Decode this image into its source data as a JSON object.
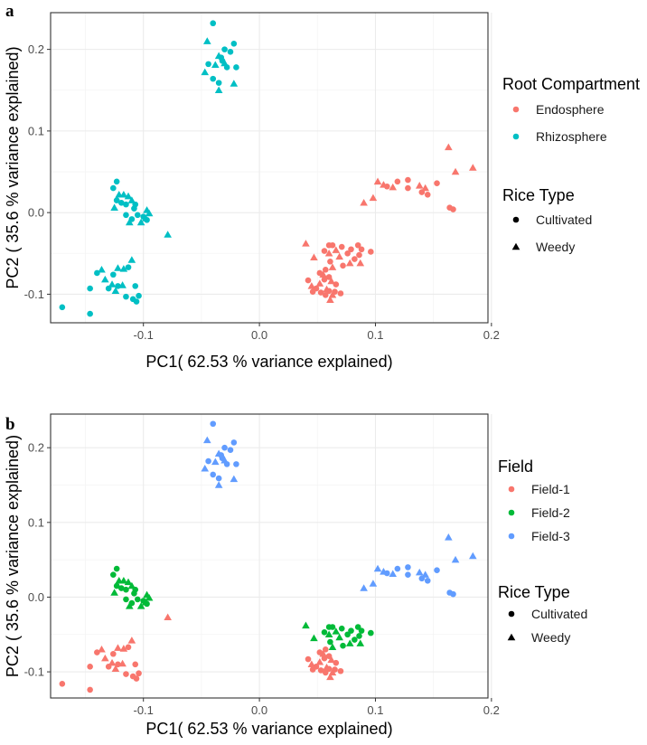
{
  "chart_data": [
    {
      "type": "scatter",
      "panel_label": "a",
      "xlabel": "PC1( 62.53 % variance explained)",
      "ylabel": "PC2 ( 35.6 % variance explained)",
      "xlim": [
        -0.18,
        0.197
      ],
      "ylim": [
        -0.135,
        0.245
      ],
      "x_ticks": [
        -0.1,
        0.0,
        0.1,
        0.2
      ],
      "x_tick_labels": [
        "-0.1",
        "0.0",
        "0.1",
        "0.2"
      ],
      "y_ticks": [
        -0.1,
        0.0,
        0.1,
        0.2
      ],
      "y_tick_labels": [
        "-0.1",
        "0.0",
        "0.1",
        "0.2"
      ],
      "grid": true,
      "color_by": "compartment",
      "legends": [
        {
          "title": "Root Compartment",
          "kind": "color",
          "items": [
            {
              "label": "Endosphere",
              "color": "#F8766D"
            },
            {
              "label": "Rhizosphere",
              "color": "#00BFC4"
            }
          ]
        },
        {
          "title": "Rice Type",
          "kind": "shape",
          "items": [
            {
              "label": "Cultivated",
              "shape": "circle"
            },
            {
              "label": "Weedy",
              "shape": "triangle"
            }
          ]
        }
      ]
    },
    {
      "type": "scatter",
      "panel_label": "b",
      "xlabel": "PC1( 62.53 % variance explained)",
      "ylabel": "PC2 ( 35.6 % variance explained)",
      "xlim": [
        -0.18,
        0.197
      ],
      "ylim": [
        -0.135,
        0.245
      ],
      "x_ticks": [
        -0.1,
        0.0,
        0.1,
        0.2
      ],
      "x_tick_labels": [
        "-0.1",
        "0.0",
        "0.1",
        "0.2"
      ],
      "y_ticks": [
        -0.1,
        0.0,
        0.1,
        0.2
      ],
      "y_tick_labels": [
        "-0.1",
        "0.0",
        "0.1",
        "0.2"
      ],
      "grid": true,
      "color_by": "field",
      "legends": [
        {
          "title": "Field",
          "kind": "color",
          "items": [
            {
              "label": "Field-1",
              "color": "#F8766D"
            },
            {
              "label": "Field-2",
              "color": "#00BA38"
            },
            {
              "label": "Field-3",
              "color": "#619CFF"
            }
          ]
        },
        {
          "title": "Rice Type",
          "kind": "shape",
          "items": [
            {
              "label": "Cultivated",
              "shape": "circle"
            },
            {
              "label": "Weedy",
              "shape": "triangle"
            }
          ]
        }
      ]
    }
  ],
  "points": [
    {
      "x": -0.04,
      "y": 0.232,
      "shape": "circle",
      "compartment": "Rhizosphere",
      "field": "Field-3"
    },
    {
      "x": -0.045,
      "y": 0.21,
      "shape": "triangle",
      "compartment": "Rhizosphere",
      "field": "Field-3"
    },
    {
      "x": -0.022,
      "y": 0.207,
      "shape": "circle",
      "compartment": "Rhizosphere",
      "field": "Field-3"
    },
    {
      "x": -0.03,
      "y": 0.2,
      "shape": "circle",
      "compartment": "Rhizosphere",
      "field": "Field-3"
    },
    {
      "x": -0.025,
      "y": 0.197,
      "shape": "circle",
      "compartment": "Rhizosphere",
      "field": "Field-3"
    },
    {
      "x": -0.035,
      "y": 0.192,
      "shape": "triangle",
      "compartment": "Rhizosphere",
      "field": "Field-3"
    },
    {
      "x": -0.033,
      "y": 0.19,
      "shape": "circle",
      "compartment": "Rhizosphere",
      "field": "Field-3"
    },
    {
      "x": -0.032,
      "y": 0.186,
      "shape": "circle",
      "compartment": "Rhizosphere",
      "field": "Field-3"
    },
    {
      "x": -0.03,
      "y": 0.183,
      "shape": "triangle",
      "compartment": "Rhizosphere",
      "field": "Field-3"
    },
    {
      "x": -0.044,
      "y": 0.182,
      "shape": "circle",
      "compartment": "Rhizosphere",
      "field": "Field-3"
    },
    {
      "x": -0.038,
      "y": 0.181,
      "shape": "triangle",
      "compartment": "Rhizosphere",
      "field": "Field-3"
    },
    {
      "x": -0.02,
      "y": 0.178,
      "shape": "circle",
      "compartment": "Rhizosphere",
      "field": "Field-3"
    },
    {
      "x": -0.028,
      "y": 0.178,
      "shape": "circle",
      "compartment": "Rhizosphere",
      "field": "Field-3"
    },
    {
      "x": -0.047,
      "y": 0.172,
      "shape": "triangle",
      "compartment": "Rhizosphere",
      "field": "Field-3"
    },
    {
      "x": -0.04,
      "y": 0.164,
      "shape": "circle",
      "compartment": "Rhizosphere",
      "field": "Field-3"
    },
    {
      "x": -0.022,
      "y": 0.158,
      "shape": "triangle",
      "compartment": "Rhizosphere",
      "field": "Field-3"
    },
    {
      "x": -0.035,
      "y": 0.159,
      "shape": "circle",
      "compartment": "Rhizosphere",
      "field": "Field-3"
    },
    {
      "x": -0.035,
      "y": 0.15,
      "shape": "triangle",
      "compartment": "Rhizosphere",
      "field": "Field-3"
    },
    {
      "x": -0.123,
      "y": 0.038,
      "shape": "circle",
      "compartment": "Rhizosphere",
      "field": "Field-2"
    },
    {
      "x": -0.126,
      "y": 0.03,
      "shape": "circle",
      "compartment": "Rhizosphere",
      "field": "Field-2"
    },
    {
      "x": -0.121,
      "y": 0.022,
      "shape": "triangle",
      "compartment": "Rhizosphere",
      "field": "Field-2"
    },
    {
      "x": -0.117,
      "y": 0.022,
      "shape": "triangle",
      "compartment": "Rhizosphere",
      "field": "Field-2"
    },
    {
      "x": -0.113,
      "y": 0.02,
      "shape": "triangle",
      "compartment": "Rhizosphere",
      "field": "Field-2"
    },
    {
      "x": -0.123,
      "y": 0.015,
      "shape": "circle",
      "compartment": "Rhizosphere",
      "field": "Field-2"
    },
    {
      "x": -0.11,
      "y": 0.015,
      "shape": "triangle",
      "compartment": "Rhizosphere",
      "field": "Field-2"
    },
    {
      "x": -0.119,
      "y": 0.012,
      "shape": "circle",
      "compartment": "Rhizosphere",
      "field": "Field-2"
    },
    {
      "x": -0.115,
      "y": 0.01,
      "shape": "circle",
      "compartment": "Rhizosphere",
      "field": "Field-2"
    },
    {
      "x": -0.107,
      "y": 0.01,
      "shape": "circle",
      "compartment": "Rhizosphere",
      "field": "Field-2"
    },
    {
      "x": -0.125,
      "y": 0.006,
      "shape": "triangle",
      "compartment": "Rhizosphere",
      "field": "Field-2"
    },
    {
      "x": -0.108,
      "y": 0.005,
      "shape": "circle",
      "compartment": "Rhizosphere",
      "field": "Field-2"
    },
    {
      "x": -0.097,
      "y": 0.003,
      "shape": "triangle",
      "compartment": "Rhizosphere",
      "field": "Field-2"
    },
    {
      "x": -0.095,
      "y": -0.001,
      "shape": "triangle",
      "compartment": "Rhizosphere",
      "field": "Field-2"
    },
    {
      "x": -0.115,
      "y": -0.003,
      "shape": "circle",
      "compartment": "Rhizosphere",
      "field": "Field-2"
    },
    {
      "x": -0.105,
      "y": -0.003,
      "shape": "circle",
      "compartment": "Rhizosphere",
      "field": "Field-2"
    },
    {
      "x": -0.1,
      "y": -0.005,
      "shape": "circle",
      "compartment": "Rhizosphere",
      "field": "Field-2"
    },
    {
      "x": -0.098,
      "y": -0.007,
      "shape": "triangle",
      "compartment": "Rhizosphere",
      "field": "Field-2"
    },
    {
      "x": -0.11,
      "y": -0.008,
      "shape": "circle",
      "compartment": "Rhizosphere",
      "field": "Field-2"
    },
    {
      "x": -0.097,
      "y": -0.009,
      "shape": "circle",
      "compartment": "Rhizosphere",
      "field": "Field-2"
    },
    {
      "x": -0.112,
      "y": -0.012,
      "shape": "triangle",
      "compartment": "Rhizosphere",
      "field": "Field-2"
    },
    {
      "x": -0.102,
      "y": -0.012,
      "shape": "triangle",
      "compartment": "Rhizosphere",
      "field": "Field-2"
    },
    {
      "x": -0.079,
      "y": -0.027,
      "shape": "triangle",
      "compartment": "Rhizosphere",
      "field": "Field-1"
    },
    {
      "x": -0.11,
      "y": -0.058,
      "shape": "triangle",
      "compartment": "Rhizosphere",
      "field": "Field-1"
    },
    {
      "x": -0.113,
      "y": -0.067,
      "shape": "circle",
      "compartment": "Rhizosphere",
      "field": "Field-1"
    },
    {
      "x": -0.122,
      "y": -0.068,
      "shape": "triangle",
      "compartment": "Rhizosphere",
      "field": "Field-1"
    },
    {
      "x": -0.117,
      "y": -0.069,
      "shape": "triangle",
      "compartment": "Rhizosphere",
      "field": "Field-1"
    },
    {
      "x": -0.136,
      "y": -0.07,
      "shape": "triangle",
      "compartment": "Rhizosphere",
      "field": "Field-1"
    },
    {
      "x": -0.14,
      "y": -0.074,
      "shape": "circle",
      "compartment": "Rhizosphere",
      "field": "Field-1"
    },
    {
      "x": -0.126,
      "y": -0.076,
      "shape": "circle",
      "compartment": "Rhizosphere",
      "field": "Field-1"
    },
    {
      "x": -0.133,
      "y": -0.082,
      "shape": "triangle",
      "compartment": "Rhizosphere",
      "field": "Field-1"
    },
    {
      "x": -0.127,
      "y": -0.088,
      "shape": "triangle",
      "compartment": "Rhizosphere",
      "field": "Field-1"
    },
    {
      "x": -0.118,
      "y": -0.089,
      "shape": "triangle",
      "compartment": "Rhizosphere",
      "field": "Field-1"
    },
    {
      "x": -0.122,
      "y": -0.09,
      "shape": "circle",
      "compartment": "Rhizosphere",
      "field": "Field-1"
    },
    {
      "x": -0.107,
      "y": -0.09,
      "shape": "circle",
      "compartment": "Rhizosphere",
      "field": "Field-1"
    },
    {
      "x": -0.13,
      "y": -0.093,
      "shape": "circle",
      "compartment": "Rhizosphere",
      "field": "Field-1"
    },
    {
      "x": -0.146,
      "y": -0.093,
      "shape": "circle",
      "compartment": "Rhizosphere",
      "field": "Field-1"
    },
    {
      "x": -0.124,
      "y": -0.096,
      "shape": "triangle",
      "compartment": "Rhizosphere",
      "field": "Field-1"
    },
    {
      "x": -0.115,
      "y": -0.103,
      "shape": "circle",
      "compartment": "Rhizosphere",
      "field": "Field-1"
    },
    {
      "x": -0.104,
      "y": -0.102,
      "shape": "circle",
      "compartment": "Rhizosphere",
      "field": "Field-1"
    },
    {
      "x": -0.106,
      "y": -0.109,
      "shape": "circle",
      "compartment": "Rhizosphere",
      "field": "Field-1"
    },
    {
      "x": -0.109,
      "y": -0.106,
      "shape": "circle",
      "compartment": "Rhizosphere",
      "field": "Field-1"
    },
    {
      "x": -0.17,
      "y": -0.116,
      "shape": "circle",
      "compartment": "Rhizosphere",
      "field": "Field-1"
    },
    {
      "x": -0.146,
      "y": -0.124,
      "shape": "circle",
      "compartment": "Rhizosphere",
      "field": "Field-1"
    },
    {
      "x": 0.163,
      "y": 0.08,
      "shape": "triangle",
      "compartment": "Endosphere",
      "field": "Field-3"
    },
    {
      "x": 0.184,
      "y": 0.055,
      "shape": "triangle",
      "compartment": "Endosphere",
      "field": "Field-3"
    },
    {
      "x": 0.169,
      "y": 0.05,
      "shape": "triangle",
      "compartment": "Endosphere",
      "field": "Field-3"
    },
    {
      "x": 0.128,
      "y": 0.04,
      "shape": "circle",
      "compartment": "Endosphere",
      "field": "Field-3"
    },
    {
      "x": 0.119,
      "y": 0.038,
      "shape": "circle",
      "compartment": "Endosphere",
      "field": "Field-3"
    },
    {
      "x": 0.102,
      "y": 0.038,
      "shape": "triangle",
      "compartment": "Endosphere",
      "field": "Field-3"
    },
    {
      "x": 0.153,
      "y": 0.036,
      "shape": "circle",
      "compartment": "Endosphere",
      "field": "Field-3"
    },
    {
      "x": 0.107,
      "y": 0.034,
      "shape": "triangle",
      "compartment": "Endosphere",
      "field": "Field-3"
    },
    {
      "x": 0.138,
      "y": 0.033,
      "shape": "triangle",
      "compartment": "Endosphere",
      "field": "Field-3"
    },
    {
      "x": 0.11,
      "y": 0.032,
      "shape": "circle",
      "compartment": "Endosphere",
      "field": "Field-3"
    },
    {
      "x": 0.115,
      "y": 0.031,
      "shape": "triangle",
      "compartment": "Endosphere",
      "field": "Field-3"
    },
    {
      "x": 0.128,
      "y": 0.03,
      "shape": "circle",
      "compartment": "Endosphere",
      "field": "Field-3"
    },
    {
      "x": 0.143,
      "y": 0.03,
      "shape": "triangle",
      "compartment": "Endosphere",
      "field": "Field-3"
    },
    {
      "x": 0.14,
      "y": 0.025,
      "shape": "circle",
      "compartment": "Endosphere",
      "field": "Field-3"
    },
    {
      "x": 0.145,
      "y": 0.022,
      "shape": "circle",
      "compartment": "Endosphere",
      "field": "Field-3"
    },
    {
      "x": 0.098,
      "y": 0.018,
      "shape": "triangle",
      "compartment": "Endosphere",
      "field": "Field-3"
    },
    {
      "x": 0.09,
      "y": 0.012,
      "shape": "triangle",
      "compartment": "Endosphere",
      "field": "Field-3"
    },
    {
      "x": 0.164,
      "y": 0.006,
      "shape": "circle",
      "compartment": "Endosphere",
      "field": "Field-3"
    },
    {
      "x": 0.167,
      "y": 0.004,
      "shape": "circle",
      "compartment": "Endosphere",
      "field": "Field-3"
    },
    {
      "x": 0.04,
      "y": -0.038,
      "shape": "triangle",
      "compartment": "Endosphere",
      "field": "Field-2"
    },
    {
      "x": 0.06,
      "y": -0.04,
      "shape": "circle",
      "compartment": "Endosphere",
      "field": "Field-2"
    },
    {
      "x": 0.063,
      "y": -0.04,
      "shape": "circle",
      "compartment": "Endosphere",
      "field": "Field-2"
    },
    {
      "x": 0.071,
      "y": -0.042,
      "shape": "circle",
      "compartment": "Endosphere",
      "field": "Field-2"
    },
    {
      "x": 0.085,
      "y": -0.04,
      "shape": "circle",
      "compartment": "Endosphere",
      "field": "Field-2"
    },
    {
      "x": 0.088,
      "y": -0.045,
      "shape": "circle",
      "compartment": "Endosphere",
      "field": "Field-2"
    },
    {
      "x": 0.079,
      "y": -0.045,
      "shape": "circle",
      "compartment": "Endosphere",
      "field": "Field-2"
    },
    {
      "x": 0.096,
      "y": -0.048,
      "shape": "circle",
      "compartment": "Endosphere",
      "field": "Field-2"
    },
    {
      "x": 0.066,
      "y": -0.046,
      "shape": "triangle",
      "compartment": "Endosphere",
      "field": "Field-2"
    },
    {
      "x": 0.056,
      "y": -0.047,
      "shape": "circle",
      "compartment": "Endosphere",
      "field": "Field-2"
    },
    {
      "x": 0.06,
      "y": -0.05,
      "shape": "triangle",
      "compartment": "Endosphere",
      "field": "Field-2"
    },
    {
      "x": 0.076,
      "y": -0.05,
      "shape": "circle",
      "compartment": "Endosphere",
      "field": "Field-2"
    },
    {
      "x": 0.086,
      "y": -0.052,
      "shape": "circle",
      "compartment": "Endosphere",
      "field": "Field-2"
    },
    {
      "x": 0.069,
      "y": -0.054,
      "shape": "triangle",
      "compartment": "Endosphere",
      "field": "Field-2"
    },
    {
      "x": 0.047,
      "y": -0.055,
      "shape": "triangle",
      "compartment": "Endosphere",
      "field": "Field-2"
    },
    {
      "x": 0.082,
      "y": -0.057,
      "shape": "circle",
      "compartment": "Endosphere",
      "field": "Field-2"
    },
    {
      "x": 0.061,
      "y": -0.06,
      "shape": "circle",
      "compartment": "Endosphere",
      "field": "Field-2"
    },
    {
      "x": 0.078,
      "y": -0.062,
      "shape": "triangle",
      "compartment": "Endosphere",
      "field": "Field-2"
    },
    {
      "x": 0.087,
      "y": -0.062,
      "shape": "triangle",
      "compartment": "Endosphere",
      "field": "Field-2"
    },
    {
      "x": 0.072,
      "y": -0.065,
      "shape": "circle",
      "compartment": "Endosphere",
      "field": "Field-2"
    },
    {
      "x": 0.063,
      "y": -0.067,
      "shape": "triangle",
      "compartment": "Endosphere",
      "field": "Field-2"
    },
    {
      "x": 0.057,
      "y": -0.07,
      "shape": "circle",
      "compartment": "Endosphere",
      "field": "Field-1"
    },
    {
      "x": 0.052,
      "y": -0.074,
      "shape": "circle",
      "compartment": "Endosphere",
      "field": "Field-1"
    },
    {
      "x": 0.055,
      "y": -0.076,
      "shape": "triangle",
      "compartment": "Endosphere",
      "field": "Field-1"
    },
    {
      "x": 0.06,
      "y": -0.079,
      "shape": "circle",
      "compartment": "Endosphere",
      "field": "Field-1"
    },
    {
      "x": 0.056,
      "y": -0.082,
      "shape": "circle",
      "compartment": "Endosphere",
      "field": "Field-1"
    },
    {
      "x": 0.042,
      "y": -0.083,
      "shape": "circle",
      "compartment": "Endosphere",
      "field": "Field-1"
    },
    {
      "x": 0.062,
      "y": -0.084,
      "shape": "triangle",
      "compartment": "Endosphere",
      "field": "Field-1"
    },
    {
      "x": 0.052,
      "y": -0.087,
      "shape": "triangle",
      "compartment": "Endosphere",
      "field": "Field-1"
    },
    {
      "x": 0.066,
      "y": -0.088,
      "shape": "circle",
      "compartment": "Endosphere",
      "field": "Field-1"
    },
    {
      "x": 0.045,
      "y": -0.09,
      "shape": "triangle",
      "compartment": "Endosphere",
      "field": "Field-1"
    },
    {
      "x": 0.049,
      "y": -0.093,
      "shape": "circle",
      "compartment": "Endosphere",
      "field": "Field-1"
    },
    {
      "x": 0.058,
      "y": -0.094,
      "shape": "triangle",
      "compartment": "Endosphere",
      "field": "Field-1"
    },
    {
      "x": 0.06,
      "y": -0.096,
      "shape": "circle",
      "compartment": "Endosphere",
      "field": "Field-1"
    },
    {
      "x": 0.046,
      "y": -0.097,
      "shape": "circle",
      "compartment": "Endosphere",
      "field": "Field-1"
    },
    {
      "x": 0.053,
      "y": -0.098,
      "shape": "circle",
      "compartment": "Endosphere",
      "field": "Field-1"
    },
    {
      "x": 0.065,
      "y": -0.097,
      "shape": "circle",
      "compartment": "Endosphere",
      "field": "Field-1"
    },
    {
      "x": 0.07,
      "y": -0.099,
      "shape": "circle",
      "compartment": "Endosphere",
      "field": "Field-1"
    },
    {
      "x": 0.057,
      "y": -0.101,
      "shape": "circle",
      "compartment": "Endosphere",
      "field": "Field-1"
    },
    {
      "x": 0.063,
      "y": -0.101,
      "shape": "triangle",
      "compartment": "Endosphere",
      "field": "Field-1"
    },
    {
      "x": 0.061,
      "y": -0.107,
      "shape": "triangle",
      "compartment": "Endosphere",
      "field": "Field-1"
    }
  ],
  "colors": {
    "compartment": {
      "Endosphere": "#F8766D",
      "Rhizosphere": "#00BFC4"
    },
    "field": {
      "Field-1": "#F8766D",
      "Field-2": "#00BA38",
      "Field-3": "#619CFF"
    },
    "panel_background": "#ffffff",
    "grid_major": "#ebebeb",
    "grid_minor": "#f3f3f3",
    "panel_border": "#333333"
  }
}
